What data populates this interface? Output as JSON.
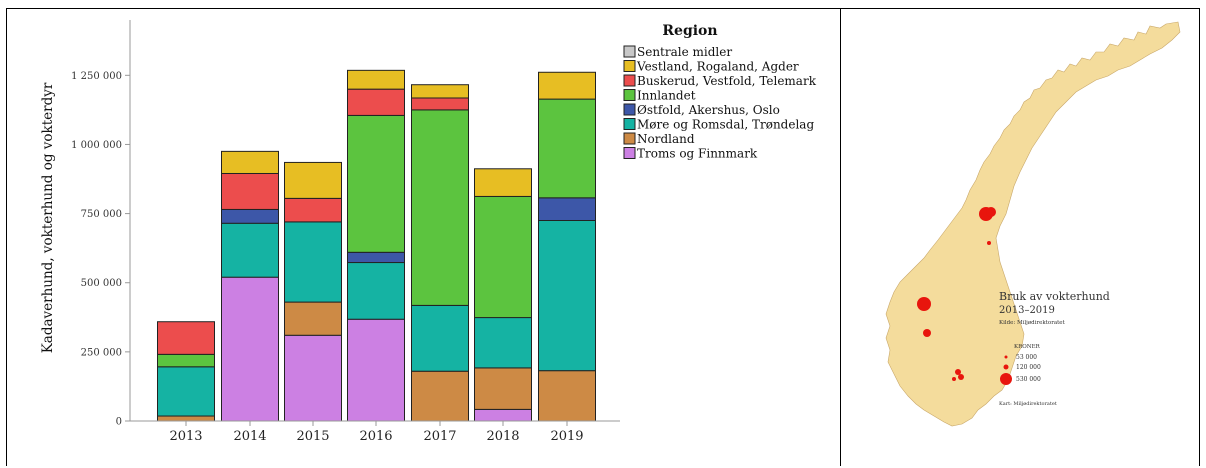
{
  "chart_data": {
    "type": "bar",
    "stacked": true,
    "categories": [
      "2013",
      "2014",
      "2015",
      "2016",
      "2017",
      "2018",
      "2019"
    ],
    "ylabel": "Kadaverhund, vokterhund og vokterdyr",
    "xlabel": "",
    "ylim": [
      0,
      1450000
    ],
    "yticks": [
      0,
      250000,
      500000,
      750000,
      1000000,
      1250000
    ],
    "ytick_labels": [
      "0",
      "250 000",
      "500 000",
      "750 000",
      "1 000 000",
      "1 250 000"
    ],
    "grid": false,
    "legend": {
      "title": "Region",
      "placement": "top-right",
      "entries": [
        "Sentrale midler",
        "Vestland, Rogaland, Agder",
        "Buskerud, Vestfold, Telemark",
        "Innlandet",
        "Østfold, Akershus, Oslo",
        "Møre og Romsdal, Trøndelag",
        "Nordland",
        "Troms og Finnmark"
      ]
    },
    "series": [
      {
        "name": "Troms og Finnmark",
        "color": "#cc80e3",
        "values": [
          0,
          520000,
          310000,
          368000,
          0,
          42000,
          0
        ]
      },
      {
        "name": "Nordland",
        "color": "#cd8a45",
        "values": [
          18000,
          0,
          120000,
          0,
          180000,
          150000,
          182000
        ]
      },
      {
        "name": "Møre og Romsdal, Trøndelag",
        "color": "#15b3a3",
        "values": [
          178000,
          195000,
          290000,
          205000,
          238000,
          182000,
          543000
        ]
      },
      {
        "name": "Østfold, Akershus, Oslo",
        "color": "#3d57a8",
        "values": [
          0,
          50000,
          0,
          37000,
          0,
          0,
          82000
        ]
      },
      {
        "name": "Innlandet",
        "color": "#5cc43f",
        "values": [
          45000,
          0,
          0,
          495000,
          707000,
          438000,
          357000
        ]
      },
      {
        "name": "Buskerud, Vestfold, Telemark",
        "color": "#ec4d4d",
        "values": [
          118000,
          130000,
          85000,
          95000,
          43000,
          0,
          0
        ]
      },
      {
        "name": "Vestland, Rogaland, Agder",
        "color": "#e7be23",
        "values": [
          0,
          80000,
          130000,
          68000,
          48000,
          100000,
          97000
        ]
      },
      {
        "name": "Sentrale midler",
        "color": "#c8c8c8",
        "values": [
          0,
          0,
          0,
          0,
          0,
          0,
          0
        ]
      }
    ]
  },
  "map": {
    "title_line1": "Bruk av vokterhund",
    "title_line2": "2013–2019",
    "source": "Kilde: Miljødirektoratet",
    "legend_heading": "KRONER",
    "legend_labels": [
      "53 000",
      "120 000",
      "530 000"
    ],
    "footer": "Kart: Miljødirektoratet",
    "land_color": "#f4dc9c",
    "dot_color": "#e8150d"
  }
}
